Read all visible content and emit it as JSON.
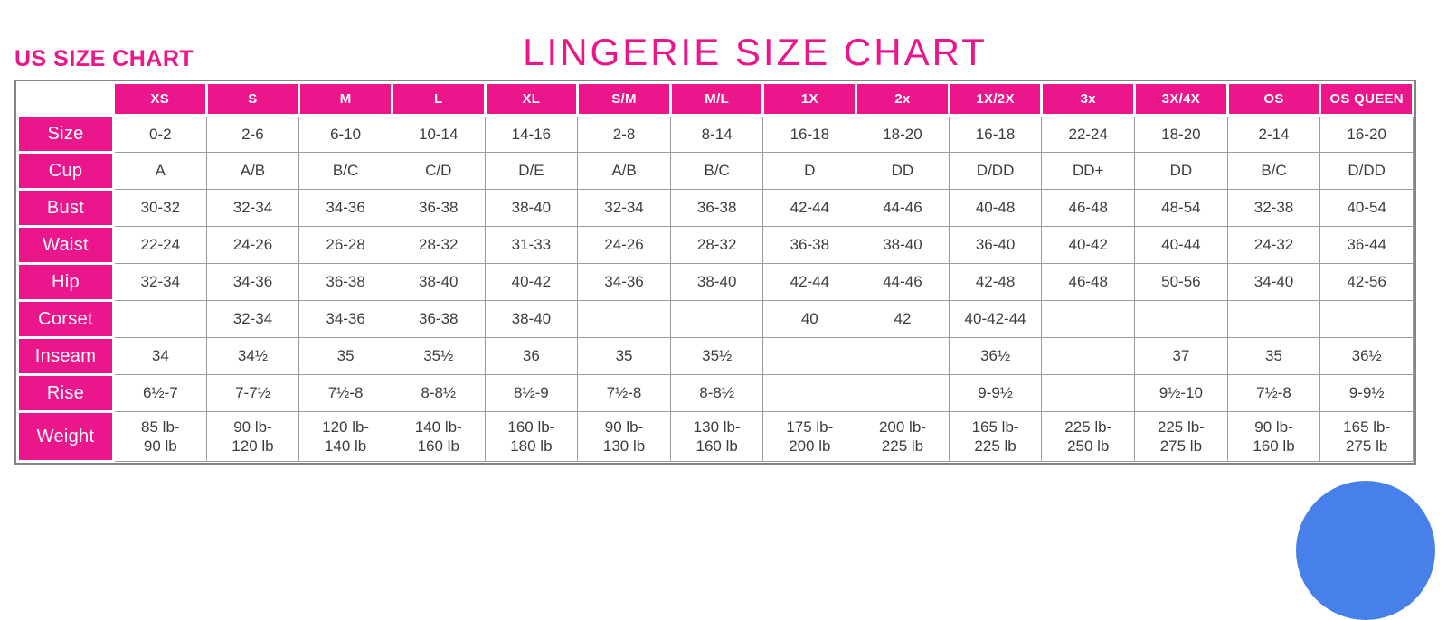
{
  "page": {
    "title": "LINGERIE SIZE CHART",
    "subtitle": "US SIZE CHART"
  },
  "colors": {
    "accent_pink": "#EC168C",
    "cell_text": "#3d3d3d",
    "cell_border": "#9c9c9c",
    "table_frame": "#848484",
    "chat_blue": "#4680E8"
  },
  "chart_data": {
    "type": "table",
    "title": "LINGERIE SIZE CHART",
    "subtitle": "US SIZE CHART",
    "columns": [
      "XS",
      "S",
      "M",
      "L",
      "XL",
      "S/M",
      "M/L",
      "1X",
      "2x",
      "1X/2X",
      "3x",
      "3X/4X",
      "OS",
      "OS QUEEN"
    ],
    "rows": [
      {
        "label": "Size",
        "values": [
          "0-2",
          "2-6",
          "6-10",
          "10-14",
          "14-16",
          "2-8",
          "8-14",
          "16-18",
          "18-20",
          "16-18",
          "22-24",
          "18-20",
          "2-14",
          "16-20"
        ]
      },
      {
        "label": "Cup",
        "values": [
          "A",
          "A/B",
          "B/C",
          "C/D",
          "D/E",
          "A/B",
          "B/C",
          "D",
          "DD",
          "D/DD",
          "DD+",
          "DD",
          "B/C",
          "D/DD"
        ]
      },
      {
        "label": "Bust",
        "values": [
          "30-32",
          "32-34",
          "34-36",
          "36-38",
          "38-40",
          "32-34",
          "36-38",
          "42-44",
          "44-46",
          "40-48",
          "46-48",
          "48-54",
          "32-38",
          "40-54"
        ]
      },
      {
        "label": "Waist",
        "values": [
          "22-24",
          "24-26",
          "26-28",
          "28-32",
          "31-33",
          "24-26",
          "28-32",
          "36-38",
          "38-40",
          "36-40",
          "40-42",
          "40-44",
          "24-32",
          "36-44"
        ]
      },
      {
        "label": "Hip",
        "values": [
          "32-34",
          "34-36",
          "36-38",
          "38-40",
          "40-42",
          "34-36",
          "38-40",
          "42-44",
          "44-46",
          "42-48",
          "46-48",
          "50-56",
          "34-40",
          "42-56"
        ]
      },
      {
        "label": "Corset",
        "values": [
          "",
          "32-34",
          "34-36",
          "36-38",
          "38-40",
          "",
          "",
          "40",
          "42",
          "40-42-44",
          "",
          "",
          "",
          ""
        ]
      },
      {
        "label": "Inseam",
        "values": [
          "34",
          "34½",
          "35",
          "35½",
          "36",
          "35",
          "35½",
          "",
          "",
          "36½",
          "",
          "37",
          "35",
          "36½"
        ]
      },
      {
        "label": "Rise",
        "values": [
          "6½-7",
          "7-7½",
          "7½-8",
          "8-8½",
          "8½-9",
          "7½-8",
          "8-8½",
          "",
          "",
          "9-9½",
          "",
          "9½-10",
          "7½-8",
          "9-9½"
        ]
      },
      {
        "label": "Weight",
        "values": [
          "85 lb-\n90 lb",
          "90 lb-\n120 lb",
          "120 lb-\n140 lb",
          "140 lb-\n160 lb",
          "160 lb-\n180 lb",
          "90 lb-\n130 lb",
          "130 lb-\n160 lb",
          "175 lb-\n200 lb",
          "200 lb-\n225 lb",
          "165 lb-\n225 lb",
          "225 lb-\n250 lb",
          "225 lb-\n275 lb",
          "90 lb-\n160 lb",
          "165 lb-\n275 lb"
        ]
      }
    ]
  },
  "widgets": {
    "chat_bubble_color": "#4680E8"
  }
}
